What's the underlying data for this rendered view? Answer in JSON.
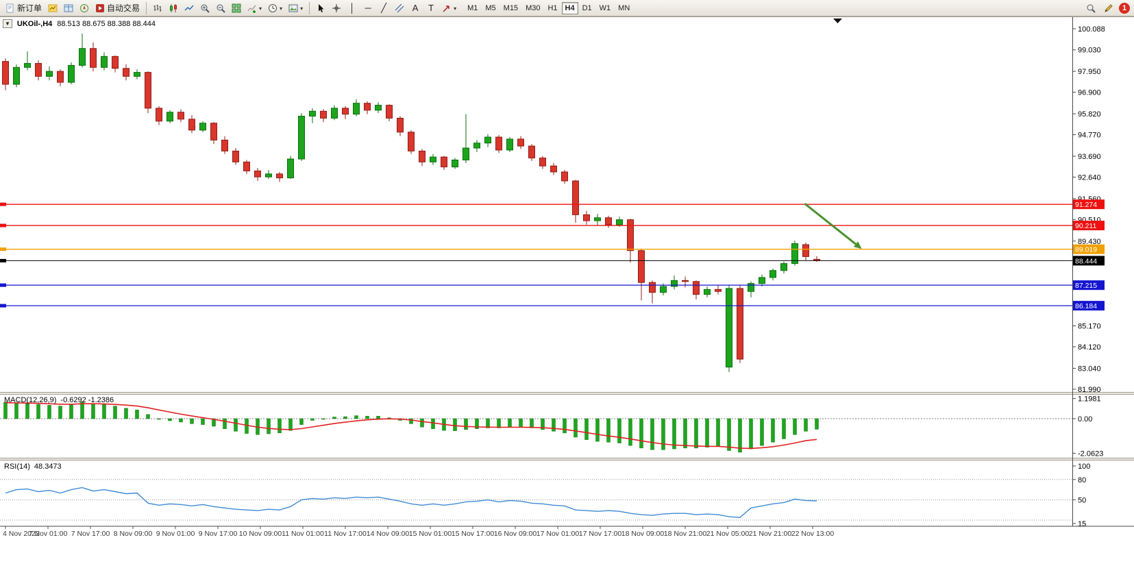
{
  "toolbar": {
    "new_order_label": "新订单",
    "auto_trading_label": "自动交易",
    "timeframes": [
      "M1",
      "M5",
      "M15",
      "M30",
      "H1",
      "H4",
      "D1",
      "W1",
      "MN"
    ],
    "active_timeframe": "H4",
    "notification_count": "1"
  },
  "icons": {
    "expand_marker": "▼",
    "dropdown_caret": "▾",
    "vertical_line_tool": "│",
    "horizontal_line_tool": "─",
    "trendline_tool": "╱",
    "text_tool": "A",
    "text_label_tool": "T",
    "scroll_marker": "▼"
  },
  "chart_data": [
    {
      "type": "candlestick",
      "symbol": "UKOil-",
      "timeframe": "H4",
      "title": "UKOil-,H4",
      "ohlc_text": "88.513 88.675 88.388 88.444",
      "last_ohlc": [
        88.513,
        88.675,
        88.388,
        88.444
      ],
      "ylim": [
        81.99,
        100.088
      ],
      "bull_color": "#1ca51c",
      "bear_color": "#d9362c",
      "y_ticks": [
        100.088,
        99.03,
        97.95,
        96.9,
        95.82,
        94.77,
        93.69,
        92.64,
        91.56,
        90.51,
        89.43,
        85.17,
        84.12,
        83.04,
        81.99
      ],
      "hlines": [
        {
          "price": 91.274,
          "color": "#ee1111",
          "label": "91.274",
          "current": false
        },
        {
          "price": 90.211,
          "color": "#ee1111",
          "label": "90.211",
          "current": false
        },
        {
          "price": 89.019,
          "color": "#f0a000",
          "label": "89.019",
          "current": false
        },
        {
          "price": 88.444,
          "color": "#000000",
          "label": "88.444",
          "current": true
        },
        {
          "price": 87.215,
          "color": "#1515d0",
          "label": "87.215",
          "current": false
        },
        {
          "price": 86.184,
          "color": "#1515d0",
          "label": "86.184",
          "current": false
        }
      ],
      "annotation_arrow": {
        "from_bar": 72.9,
        "from_price": 91.31,
        "to_bar": 78.1,
        "to_price": 89.04,
        "color": "#4a8f2c"
      },
      "time_labels": [
        "4 Nov 2022",
        "7 Nov 01:00",
        "7 Nov 17:00",
        "8 Nov 09:00",
        "9 Nov 01:00",
        "9 Nov 17:00",
        "10 Nov 09:00",
        "11 Nov 01:00",
        "11 Nov 17:00",
        "14 Nov 09:00",
        "15 Nov 01:00",
        "15 Nov 17:00",
        "16 Nov 09:00",
        "17 Nov 01:00",
        "17 Nov 17:00",
        "18 Nov 09:00",
        "18 Nov 21:00",
        "21 Nov 05:00",
        "21 Nov 21:00",
        "22 Nov 13:00"
      ],
      "candles": [
        [
          98.45,
          98.6,
          97.0,
          97.3
        ],
        [
          97.3,
          98.3,
          97.15,
          98.15
        ],
        [
          98.15,
          98.95,
          98.0,
          98.35
        ],
        [
          98.35,
          98.5,
          97.5,
          97.7
        ],
        [
          97.7,
          98.2,
          97.5,
          97.95
        ],
        [
          97.95,
          98.05,
          97.2,
          97.4
        ],
        [
          97.4,
          98.4,
          97.3,
          98.25
        ],
        [
          98.25,
          99.85,
          98.15,
          99.1
        ],
        [
          99.1,
          99.4,
          97.95,
          98.15
        ],
        [
          98.15,
          98.9,
          98.0,
          98.7
        ],
        [
          98.7,
          98.75,
          97.9,
          98.1
        ],
        [
          98.1,
          98.3,
          97.5,
          97.7
        ],
        [
          97.7,
          98.05,
          97.55,
          97.9
        ],
        [
          97.9,
          97.95,
          95.85,
          96.1
        ],
        [
          96.1,
          96.2,
          95.25,
          95.45
        ],
        [
          95.45,
          96.0,
          95.35,
          95.9
        ],
        [
          95.9,
          96.05,
          95.4,
          95.55
        ],
        [
          95.55,
          95.75,
          94.85,
          95.0
        ],
        [
          95.0,
          95.45,
          94.9,
          95.35
        ],
        [
          95.35,
          95.4,
          94.3,
          94.5
        ],
        [
          94.5,
          94.7,
          93.8,
          93.95
        ],
        [
          93.95,
          94.1,
          93.25,
          93.4
        ],
        [
          93.4,
          93.5,
          92.8,
          92.95
        ],
        [
          92.95,
          93.1,
          92.45,
          92.65
        ],
        [
          92.65,
          93.0,
          92.55,
          92.8
        ],
        [
          92.8,
          92.9,
          92.4,
          92.6
        ],
        [
          92.6,
          93.7,
          92.55,
          93.55
        ],
        [
          93.55,
          95.85,
          93.45,
          95.7
        ],
        [
          95.7,
          96.1,
          95.35,
          95.95
        ],
        [
          95.95,
          96.05,
          95.4,
          95.6
        ],
        [
          95.6,
          96.25,
          95.5,
          96.1
        ],
        [
          96.1,
          96.2,
          95.55,
          95.8
        ],
        [
          95.8,
          96.55,
          95.7,
          96.35
        ],
        [
          96.35,
          96.45,
          95.8,
          96.0
        ],
        [
          96.0,
          96.4,
          95.85,
          96.25
        ],
        [
          96.25,
          96.3,
          95.45,
          95.6
        ],
        [
          95.6,
          95.7,
          94.7,
          94.9
        ],
        [
          94.9,
          95.0,
          93.8,
          93.95
        ],
        [
          93.95,
          94.05,
          93.2,
          93.4
        ],
        [
          93.4,
          93.8,
          93.25,
          93.65
        ],
        [
          93.65,
          93.7,
          93.0,
          93.15
        ],
        [
          93.15,
          93.6,
          93.05,
          93.5
        ],
        [
          93.5,
          95.8,
          93.35,
          94.1
        ],
        [
          94.1,
          94.5,
          93.9,
          94.35
        ],
        [
          94.35,
          94.8,
          94.15,
          94.65
        ],
        [
          94.65,
          94.75,
          93.85,
          94.0
        ],
        [
          94.0,
          94.65,
          93.9,
          94.55
        ],
        [
          94.55,
          94.7,
          94.05,
          94.2
        ],
        [
          94.2,
          94.3,
          93.45,
          93.6
        ],
        [
          93.6,
          93.7,
          93.05,
          93.2
        ],
        [
          93.2,
          93.35,
          92.75,
          92.9
        ],
        [
          92.9,
          93.0,
          92.3,
          92.45
        ],
        [
          92.45,
          92.5,
          90.35,
          90.75
        ],
        [
          90.75,
          90.95,
          90.25,
          90.45
        ],
        [
          90.45,
          90.8,
          90.2,
          90.6
        ],
        [
          90.6,
          90.7,
          90.1,
          90.25
        ],
        [
          90.25,
          90.65,
          90.15,
          90.5
        ],
        [
          90.5,
          90.55,
          88.35,
          88.95
        ],
        [
          88.95,
          89.05,
          86.45,
          87.35
        ],
        [
          87.35,
          87.45,
          86.3,
          86.85
        ],
        [
          86.85,
          87.3,
          86.7,
          87.15
        ],
        [
          87.15,
          87.7,
          87.0,
          87.45
        ],
        [
          87.45,
          87.65,
          87.1,
          87.4
        ],
        [
          87.4,
          87.45,
          86.5,
          86.75
        ],
        [
          86.75,
          87.15,
          86.6,
          87.0
        ],
        [
          87.0,
          87.2,
          86.75,
          86.9
        ],
        [
          83.1,
          87.2,
          82.85,
          87.05
        ],
        [
          87.05,
          87.2,
          83.3,
          83.5
        ],
        [
          86.9,
          87.4,
          86.6,
          87.3
        ],
        [
          87.3,
          87.75,
          87.15,
          87.6
        ],
        [
          87.6,
          88.05,
          87.45,
          87.95
        ],
        [
          87.95,
          88.4,
          87.8,
          88.3
        ],
        [
          88.3,
          89.45,
          88.2,
          89.3
        ],
        [
          89.25,
          89.35,
          88.45,
          88.65
        ],
        [
          88.513,
          88.675,
          88.388,
          88.444
        ]
      ]
    },
    {
      "type": "macd_histogram",
      "label": "MACD(12,26,9)",
      "values_text": "-0.6292 -1.2386",
      "main_value": -0.6292,
      "signal_value": -1.2386,
      "y_ticks": [
        "1.1981",
        "0.00",
        "-2.0623"
      ],
      "hist_color": "#1fa51f",
      "signal_color": "#e02020",
      "histogram": [
        0.98,
        0.92,
        0.9,
        0.85,
        0.8,
        0.75,
        0.85,
        1.0,
        0.9,
        0.85,
        0.75,
        0.62,
        0.52,
        0.25,
        0.0,
        -0.12,
        -0.2,
        -0.3,
        -0.35,
        -0.45,
        -0.6,
        -0.75,
        -0.88,
        -0.95,
        -0.9,
        -0.85,
        -0.7,
        -0.35,
        -0.1,
        0.0,
        0.1,
        0.12,
        0.18,
        0.15,
        0.15,
        0.05,
        -0.1,
        -0.3,
        -0.5,
        -0.6,
        -0.7,
        -0.72,
        -0.65,
        -0.6,
        -0.55,
        -0.55,
        -0.5,
        -0.5,
        -0.55,
        -0.65,
        -0.75,
        -0.85,
        -1.1,
        -1.25,
        -1.35,
        -1.4,
        -1.45,
        -1.6,
        -1.75,
        -1.85,
        -1.85,
        -1.8,
        -1.75,
        -1.75,
        -1.7,
        -1.65,
        -1.9,
        -2.0,
        -1.8,
        -1.6,
        -1.4,
        -1.2,
        -0.95,
        -0.75,
        -0.6292
      ],
      "signal": [
        0.95,
        0.94,
        0.93,
        0.91,
        0.89,
        0.86,
        0.86,
        0.89,
        0.89,
        0.88,
        0.85,
        0.81,
        0.75,
        0.65,
        0.52,
        0.39,
        0.27,
        0.16,
        0.06,
        -0.04,
        -0.15,
        -0.27,
        -0.39,
        -0.5,
        -0.58,
        -0.63,
        -0.65,
        -0.59,
        -0.49,
        -0.39,
        -0.29,
        -0.21,
        -0.13,
        -0.07,
        -0.03,
        -0.01,
        -0.03,
        -0.08,
        -0.17,
        -0.25,
        -0.34,
        -0.42,
        -0.46,
        -0.49,
        -0.5,
        -0.51,
        -0.51,
        -0.51,
        -0.52,
        -0.54,
        -0.58,
        -0.64,
        -0.73,
        -0.83,
        -0.94,
        -1.03,
        -1.11,
        -1.21,
        -1.32,
        -1.42,
        -1.51,
        -1.57,
        -1.6,
        -1.63,
        -1.65,
        -1.65,
        -1.7,
        -1.76,
        -1.77,
        -1.73,
        -1.67,
        -1.57,
        -1.45,
        -1.31,
        -1.2386
      ]
    },
    {
      "type": "rsi_line",
      "label": "RSI(14)",
      "value_text": "48.3473",
      "value": 48.3473,
      "y_ticks": [
        "100",
        "80",
        "50",
        "15"
      ],
      "levels": [
        80,
        50,
        20
      ],
      "line_color": "#3d8bd4",
      "values": [
        60,
        65,
        66,
        62,
        64,
        60,
        65,
        68,
        63,
        65,
        62,
        59,
        60,
        45,
        42,
        44,
        43,
        41,
        43,
        40,
        38,
        36,
        35,
        34,
        36,
        35,
        40,
        50,
        52,
        51,
        53,
        52,
        54,
        53,
        54,
        51,
        48,
        44,
        42,
        44,
        42,
        44,
        47,
        48,
        50,
        47,
        49,
        48,
        45,
        44,
        42,
        41,
        35,
        34,
        33,
        34,
        33,
        30,
        28,
        27,
        29,
        30,
        30,
        28,
        29,
        28,
        25,
        24,
        38,
        41,
        44,
        46,
        51,
        49,
        48.3473
      ]
    }
  ]
}
